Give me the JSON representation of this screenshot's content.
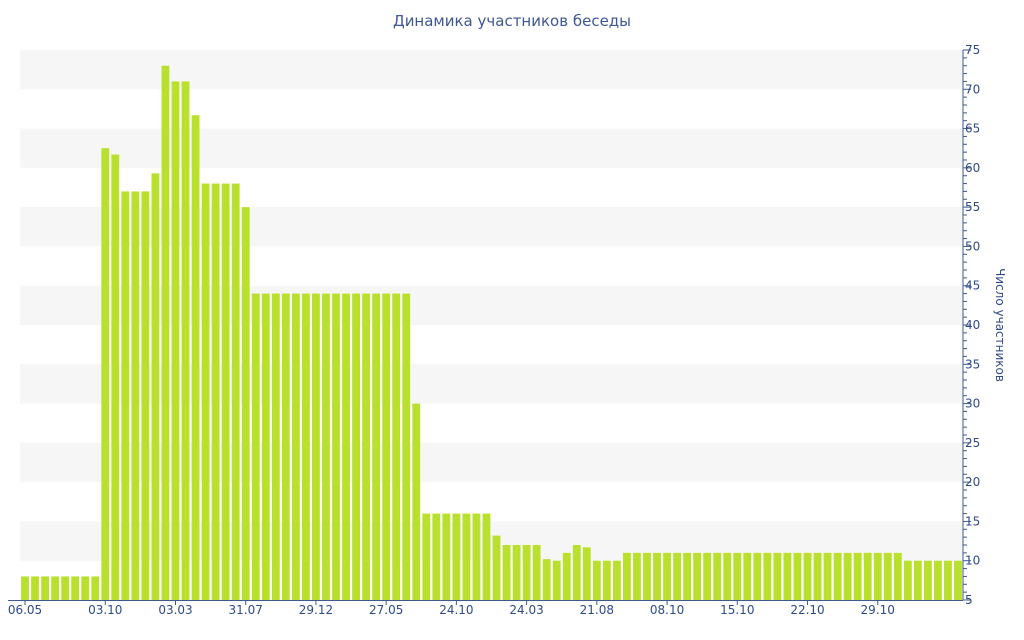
{
  "chart_data": {
    "type": "bar",
    "title": "Динамика участников беседы",
    "ylabel": "Число участников",
    "xlabel": "",
    "ylim": [
      5,
      75
    ],
    "yticks": [
      5,
      10,
      15,
      20,
      25,
      30,
      35,
      40,
      45,
      50,
      55,
      60,
      65,
      70,
      75
    ],
    "y_axis_side": "right",
    "grid": "alternating horizontal bands",
    "bar_color": "#b8e02d",
    "band_color": "#f6f6f6",
    "axis_color": "#3d5a8c",
    "x_tick_labels": [
      {
        "index": 0,
        "label": "06.05"
      },
      {
        "index": 8,
        "label": "03.10"
      },
      {
        "index": 15,
        "label": "03.03"
      },
      {
        "index": 22,
        "label": "31.07"
      },
      {
        "index": 29,
        "label": "29.12"
      },
      {
        "index": 36,
        "label": "27.05"
      },
      {
        "index": 43,
        "label": "24.10"
      },
      {
        "index": 50,
        "label": "24.03"
      },
      {
        "index": 57,
        "label": "21.08"
      },
      {
        "index": 64,
        "label": "08.10"
      },
      {
        "index": 71,
        "label": "15.10"
      },
      {
        "index": 78,
        "label": "22.10"
      },
      {
        "index": 85,
        "label": "29.10"
      }
    ],
    "values": [
      8,
      8,
      8,
      8,
      8,
      8,
      8,
      8,
      62.5,
      61.7,
      57,
      57,
      57,
      59.3,
      73,
      71,
      71,
      66.7,
      58,
      58,
      58,
      58,
      55,
      44,
      44,
      44,
      44,
      44,
      44,
      44,
      44,
      44,
      44,
      44,
      44,
      44,
      44,
      44,
      44,
      30,
      16,
      16,
      16,
      16,
      16,
      16,
      16,
      13.2,
      12,
      12,
      12,
      12,
      10.2,
      10,
      11,
      12,
      11.7,
      10,
      10,
      10,
      11,
      11,
      11,
      11,
      11,
      11,
      11,
      11,
      11,
      11,
      11,
      11,
      11,
      11,
      11,
      11,
      11,
      11,
      11,
      11,
      11,
      11,
      11,
      11,
      11,
      11,
      11,
      11,
      10,
      10,
      10,
      10,
      10,
      10
    ]
  }
}
